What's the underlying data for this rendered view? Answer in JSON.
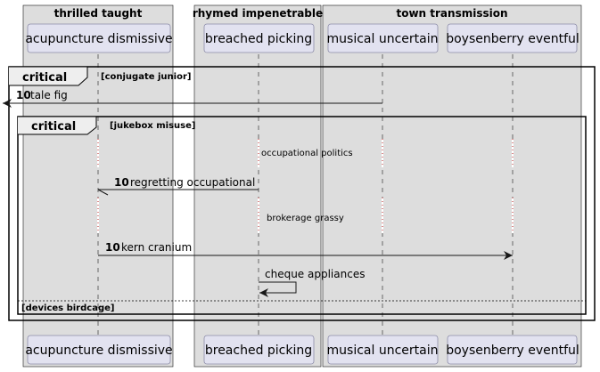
{
  "boxes": [
    {
      "title": "thrilled taught"
    },
    {
      "title": "rhymed impenetrable"
    },
    {
      "title": "town transmission"
    }
  ],
  "participants": [
    {
      "name": "acupuncture dismissive"
    },
    {
      "name": "breached picking"
    },
    {
      "name": "musical uncertain"
    },
    {
      "name": "boysenberry eventful"
    }
  ],
  "frames": {
    "outer": {
      "keyword": "critical",
      "condition": "[conjugate junior]"
    },
    "inner": {
      "keyword": "critical",
      "condition": "[jukebox misuse]",
      "else_condition": "[devices birdcage]"
    }
  },
  "messages": [
    {
      "number": "10",
      "label": "tale fig"
    },
    {
      "number": "10",
      "label": "regretting occupational"
    },
    {
      "number": "10",
      "label": "kern cranium"
    },
    {
      "number": "",
      "label": "cheque appliances"
    }
  ],
  "delays": [
    {
      "label": "occupational politics"
    },
    {
      "label": "brokerage grassy"
    }
  ],
  "colors": {
    "box_fill": "#dddddd",
    "participant_fill": "#e2e2f0",
    "participant_border": "#8c8ca8",
    "line": "#181818"
  }
}
